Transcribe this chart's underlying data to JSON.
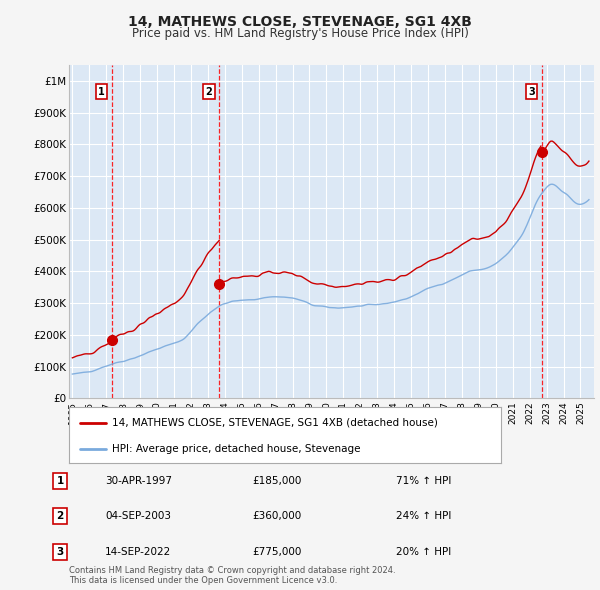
{
  "title": "14, MATHEWS CLOSE, STEVENAGE, SG1 4XB",
  "subtitle": "Price paid vs. HM Land Registry's House Price Index (HPI)",
  "plot_bg_color": "#dce8f5",
  "grid_color": "#ffffff",
  "ylim": [
    0,
    1050000
  ],
  "yticks": [
    0,
    100000,
    200000,
    300000,
    400000,
    500000,
    600000,
    700000,
    800000,
    900000,
    1000000
  ],
  "ytick_labels": [
    "£0",
    "£100K",
    "£200K",
    "£300K",
    "£400K",
    "£500K",
    "£600K",
    "£700K",
    "£800K",
    "£900K",
    "£1M"
  ],
  "transactions": [
    {
      "year": 1997.33,
      "price": 185000,
      "label": "1"
    },
    {
      "year": 2003.67,
      "price": 360000,
      "label": "2"
    },
    {
      "year": 2022.71,
      "price": 775000,
      "label": "3"
    }
  ],
  "red_color": "#cc0000",
  "blue_color": "#7aaadd",
  "legend_line1": "14, MATHEWS CLOSE, STEVENAGE, SG1 4XB (detached house)",
  "legend_line2": "HPI: Average price, detached house, Stevenage",
  "table_rows": [
    {
      "num": "1",
      "date": "30-APR-1997",
      "price": "£185,000",
      "change": "71% ↑ HPI"
    },
    {
      "num": "2",
      "date": "04-SEP-2003",
      "price": "£360,000",
      "change": "24% ↑ HPI"
    },
    {
      "num": "3",
      "date": "14-SEP-2022",
      "price": "£775,000",
      "change": "20% ↑ HPI"
    }
  ],
  "footer": "Contains HM Land Registry data © Crown copyright and database right 2024.\nThis data is licensed under the Open Government Licence v3.0.",
  "xmin": 1994.8,
  "xmax": 2025.8
}
